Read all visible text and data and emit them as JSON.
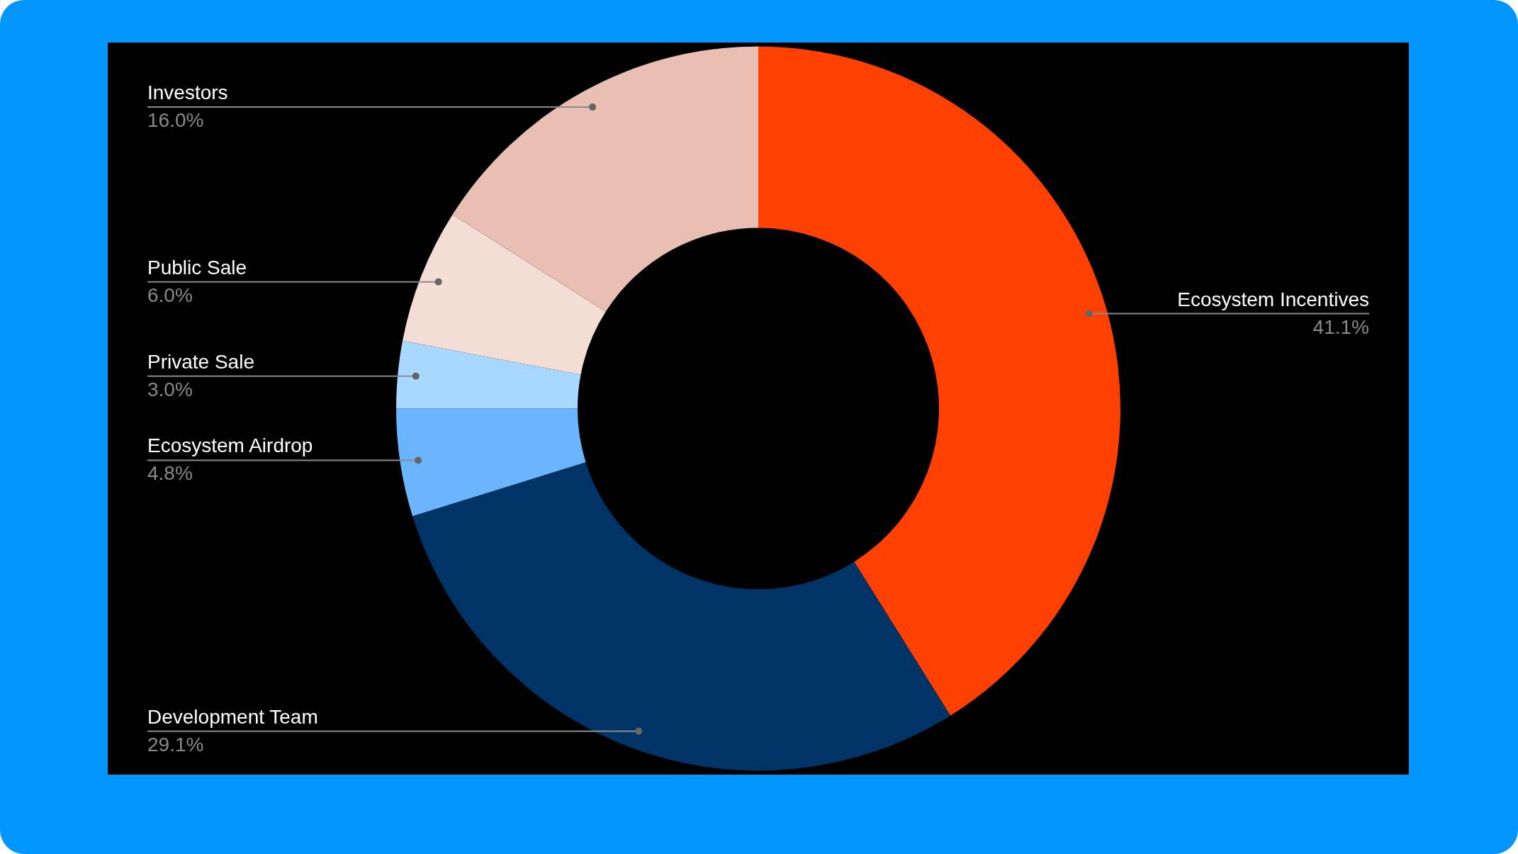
{
  "chart_data": {
    "type": "donut",
    "categories": [
      "Ecosystem Incentives",
      "Development Team",
      "Ecosystem Airdrop",
      "Private Sale",
      "Public Sale",
      "Investors"
    ],
    "values": [
      41.1,
      29.1,
      4.8,
      3.0,
      6.0,
      16.0
    ],
    "colors": [
      "#ff4000",
      "#003366",
      "#6bb5ff",
      "#a8d8ff",
      "#f4ddd5",
      "#e8bfb2"
    ],
    "value_labels": [
      "41.1%",
      "29.1%",
      "4.8%",
      "3.0%",
      "6.0%",
      "16.0%"
    ]
  }
}
